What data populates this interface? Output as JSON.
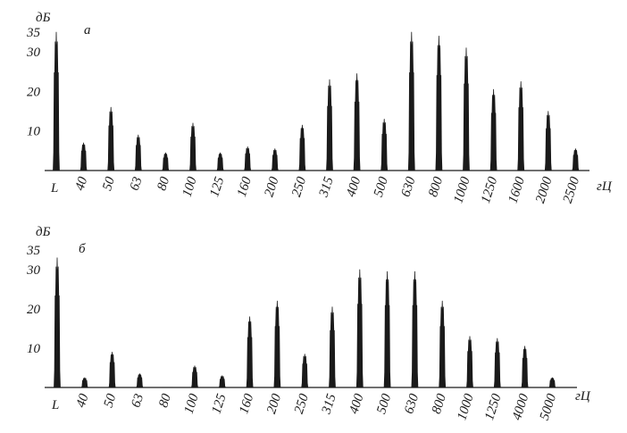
{
  "chart_data": [
    {
      "type": "bar",
      "panel_label": "а",
      "ylabel": "дБ",
      "xlabel": "гЦ",
      "ylim": [
        0,
        35
      ],
      "yticks": [
        10,
        20,
        30,
        35
      ],
      "categories": [
        "L",
        "40",
        "50",
        "63",
        "80",
        "100",
        "125",
        "160",
        "200",
        "250",
        "315",
        "400",
        "500",
        "630",
        "800",
        "1000",
        "1250",
        "1600",
        "2000",
        "2500"
      ],
      "values": [
        35,
        7,
        16,
        9,
        4.5,
        12,
        4.5,
        6,
        5.5,
        11.5,
        23,
        24.5,
        13,
        35,
        34,
        31,
        20.5,
        22.5,
        15,
        5.5
      ]
    },
    {
      "type": "bar",
      "panel_label": "б",
      "ylabel": "дБ",
      "xlabel": "гЦ",
      "ylim": [
        0,
        35
      ],
      "yticks": [
        10,
        20,
        30,
        35
      ],
      "categories": [
        "L",
        "40",
        "50",
        "63",
        "80",
        "100",
        "125",
        "160",
        "200",
        "250",
        "315",
        "400",
        "500",
        "630",
        "800",
        "1000",
        "1250",
        "4000",
        "5000"
      ],
      "values": [
        33,
        2.5,
        9,
        3.5,
        0,
        5.5,
        3,
        18,
        22,
        8.5,
        20.5,
        30,
        29.5,
        29.5,
        22,
        13,
        12.5,
        10.5,
        2.5
      ]
    }
  ]
}
